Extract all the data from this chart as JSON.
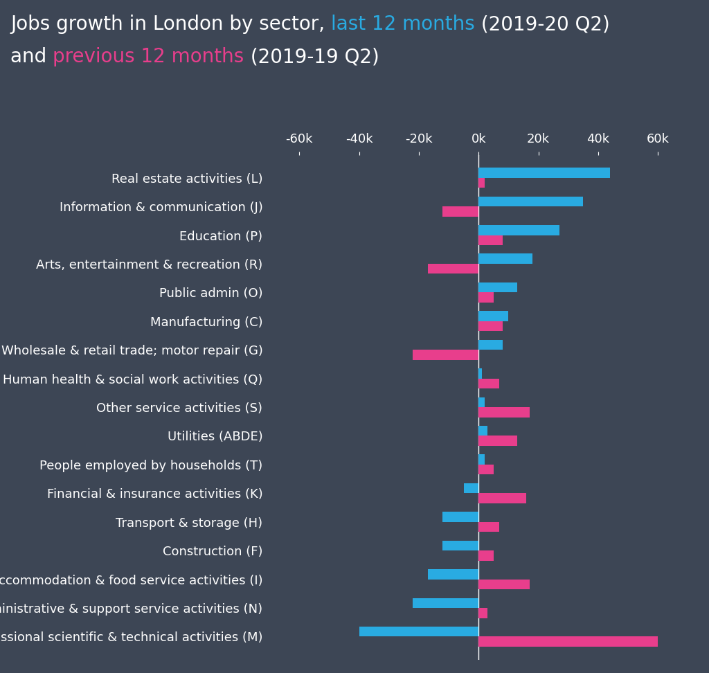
{
  "background_color": "#3d4655",
  "categories": [
    "Professional scientific & technical activities (M)",
    "Administrative & support service activities (N)",
    "Accommodation & food service activities (I)",
    "Construction (F)",
    "Transport & storage (H)",
    "Financial & insurance activities (K)",
    "People employed by households (T)",
    "Utilities (ABDE)",
    "Other service activities (S)",
    "Human health & social work activities (Q)",
    "Wholesale & retail trade; motor repair (G)",
    "Manufacturing (C)",
    "Public admin (O)",
    "Arts, entertainment & recreation (R)",
    "Education (P)",
    "Information & communication (J)",
    "Real estate activities (L)"
  ],
  "last_12_months": [
    -40000,
    -22000,
    -17000,
    -12000,
    -12000,
    -5000,
    2000,
    3000,
    2000,
    1000,
    8000,
    10000,
    13000,
    18000,
    27000,
    35000,
    44000
  ],
  "prev_12_months": [
    60000,
    3000,
    17000,
    5000,
    7000,
    16000,
    5000,
    13000,
    17000,
    7000,
    -22000,
    8000,
    5000,
    -17000,
    8000,
    -12000,
    2000
  ],
  "bar_color_last": "#29abe2",
  "bar_color_prev": "#e83e8c",
  "xlim": [
    -70000,
    70000
  ],
  "xtick_values": [
    -60000,
    -40000,
    -20000,
    0,
    20000,
    40000,
    60000
  ],
  "xtick_labels": [
    "-60k",
    "-40k",
    "-20k",
    "0k",
    "20k",
    "40k",
    "60k"
  ],
  "text_color": "#ffffff",
  "title_fontsize": 20,
  "label_fontsize": 13,
  "tick_fontsize": 13,
  "title_line1": [
    [
      "Jobs growth in London by sector, ",
      "#ffffff"
    ],
    [
      "last 12 months",
      "#29abe2"
    ],
    [
      " (2019-20 Q2)",
      "#ffffff"
    ]
  ],
  "title_line2": [
    [
      "and ",
      "#ffffff"
    ],
    [
      "previous 12 months",
      "#e83e8c"
    ],
    [
      " (2019-19 Q2)",
      "#ffffff"
    ]
  ]
}
